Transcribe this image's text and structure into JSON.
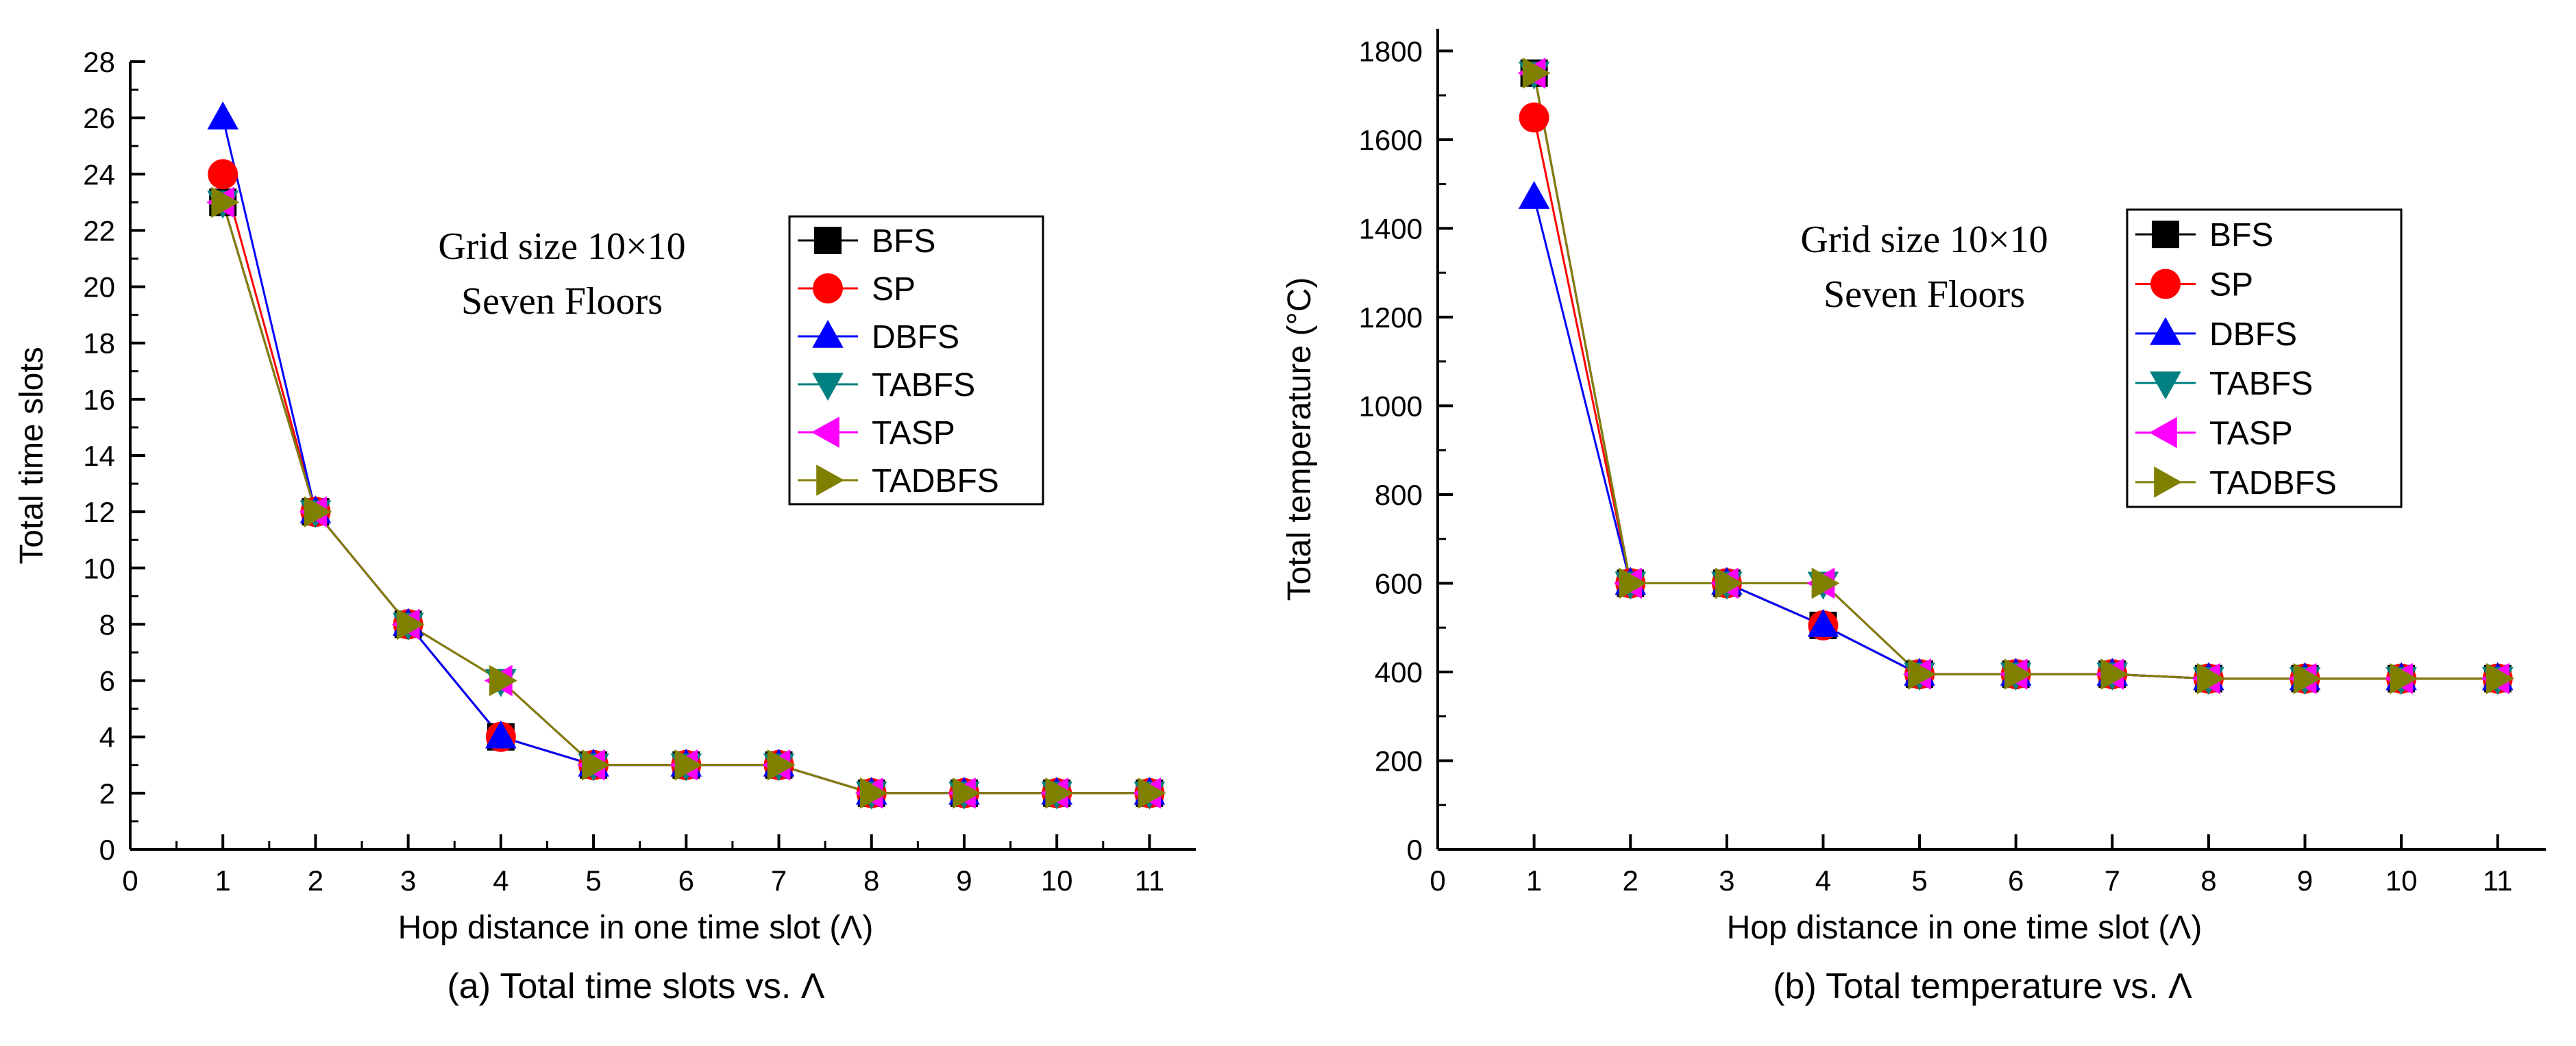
{
  "chart_data": [
    {
      "type": "line",
      "caption": "(a) Total time slots vs. Λ",
      "xlabel": "Hop distance in one time slot (Λ)",
      "ylabel": "Total time slots",
      "xlim": [
        0,
        11.5
      ],
      "ylim": [
        0,
        28
      ],
      "xticks": [
        0,
        1,
        2,
        3,
        4,
        5,
        6,
        7,
        8,
        9,
        10,
        11
      ],
      "yticks": [
        0,
        2,
        4,
        6,
        8,
        10,
        12,
        14,
        16,
        18,
        20,
        22,
        24,
        26,
        28
      ],
      "annotation": [
        "Grid size 10×10",
        "Seven Floors"
      ],
      "legend_position": "top-right",
      "series": [
        {
          "name": "BFS",
          "color": "#000000",
          "marker": "square",
          "x": [
            1,
            2,
            3,
            4,
            5,
            6,
            7,
            8,
            9,
            10,
            11
          ],
          "values": [
            23,
            12,
            8,
            4,
            3,
            3,
            3,
            2,
            2,
            2,
            2
          ]
        },
        {
          "name": "SP",
          "color": "#ff0000",
          "marker": "circle",
          "x": [
            1,
            2,
            3,
            4,
            5,
            6,
            7,
            8,
            9,
            10,
            11
          ],
          "values": [
            24,
            12,
            8,
            4,
            3,
            3,
            3,
            2,
            2,
            2,
            2
          ]
        },
        {
          "name": "DBFS",
          "color": "#0000ff",
          "marker": "triangle-up",
          "x": [
            1,
            2,
            3,
            4,
            5,
            6,
            7,
            8,
            9,
            10,
            11
          ],
          "values": [
            26,
            12,
            8,
            4,
            3,
            3,
            3,
            2,
            2,
            2,
            2
          ]
        },
        {
          "name": "TABFS",
          "color": "#008080",
          "marker": "triangle-down",
          "x": [
            1,
            2,
            3,
            4,
            5,
            6,
            7,
            8,
            9,
            10,
            11
          ],
          "values": [
            23,
            12,
            8,
            6,
            3,
            3,
            3,
            2,
            2,
            2,
            2
          ]
        },
        {
          "name": "TASP",
          "color": "#ff00ff",
          "marker": "triangle-left",
          "x": [
            1,
            2,
            3,
            4,
            5,
            6,
            7,
            8,
            9,
            10,
            11
          ],
          "values": [
            23,
            12,
            8,
            6,
            3,
            3,
            3,
            2,
            2,
            2,
            2
          ]
        },
        {
          "name": "TADBFS",
          "color": "#808000",
          "marker": "triangle-right",
          "x": [
            1,
            2,
            3,
            4,
            5,
            6,
            7,
            8,
            9,
            10,
            11
          ],
          "values": [
            23,
            12,
            8,
            6,
            3,
            3,
            3,
            2,
            2,
            2,
            2
          ]
        }
      ]
    },
    {
      "type": "line",
      "caption": "(b) Total temperature vs. Λ",
      "xlabel": "Hop distance in one time slot (Λ)",
      "ylabel": "Total temperature (°C)",
      "xlim": [
        0,
        11.5
      ],
      "ylim": [
        0,
        1850
      ],
      "xticks": [
        0,
        1,
        2,
        3,
        4,
        5,
        6,
        7,
        8,
        9,
        10,
        11
      ],
      "yticks": [
        0,
        200,
        400,
        600,
        800,
        1000,
        1200,
        1400,
        1600,
        1800
      ],
      "annotation": [
        "Grid size 10×10",
        "Seven Floors"
      ],
      "legend_position": "top-right",
      "series": [
        {
          "name": "BFS",
          "color": "#000000",
          "marker": "square",
          "x": [
            1,
            2,
            3,
            4,
            5,
            6,
            7,
            8,
            9,
            10,
            11
          ],
          "values": [
            1750,
            600,
            600,
            505,
            395,
            395,
            395,
            385,
            385,
            385,
            385
          ]
        },
        {
          "name": "SP",
          "color": "#ff0000",
          "marker": "circle",
          "x": [
            1,
            2,
            3,
            4,
            5,
            6,
            7,
            8,
            9,
            10,
            11
          ],
          "values": [
            1650,
            600,
            600,
            505,
            395,
            395,
            395,
            385,
            385,
            385,
            385
          ]
        },
        {
          "name": "DBFS",
          "color": "#0000ff",
          "marker": "triangle-up",
          "x": [
            1,
            2,
            3,
            4,
            5,
            6,
            7,
            8,
            9,
            10,
            11
          ],
          "values": [
            1470,
            600,
            600,
            505,
            395,
            395,
            395,
            385,
            385,
            385,
            385
          ]
        },
        {
          "name": "TABFS",
          "color": "#008080",
          "marker": "triangle-down",
          "x": [
            1,
            2,
            3,
            4,
            5,
            6,
            7,
            8,
            9,
            10,
            11
          ],
          "values": [
            1750,
            600,
            600,
            600,
            395,
            395,
            395,
            385,
            385,
            385,
            385
          ]
        },
        {
          "name": "TASP",
          "color": "#ff00ff",
          "marker": "triangle-left",
          "x": [
            1,
            2,
            3,
            4,
            5,
            6,
            7,
            8,
            9,
            10,
            11
          ],
          "values": [
            1750,
            600,
            600,
            600,
            395,
            395,
            395,
            385,
            385,
            385,
            385
          ]
        },
        {
          "name": "TADBFS",
          "color": "#808000",
          "marker": "triangle-right",
          "x": [
            1,
            2,
            3,
            4,
            5,
            6,
            7,
            8,
            9,
            10,
            11
          ],
          "values": [
            1750,
            600,
            600,
            600,
            395,
            395,
            395,
            385,
            385,
            385,
            385
          ]
        }
      ]
    }
  ]
}
